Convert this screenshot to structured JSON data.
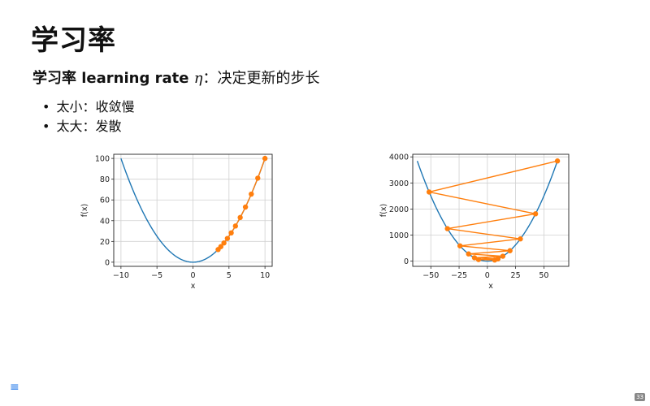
{
  "slide": {
    "title": "学习率",
    "subtitle_bold": "学习率 learning rate ",
    "subtitle_eta": "η",
    "subtitle_rest": "：决定更新的步长",
    "bullets": [
      "太小：收敛慢",
      "太大：发散"
    ],
    "page_number": "33"
  },
  "colors": {
    "curve": "#1f77b4",
    "steps": "#ff7f0e",
    "menu": "#1a73e8"
  },
  "icons": {
    "menu": "hamburger-menu-icon"
  },
  "chart_data": [
    {
      "type": "line",
      "xlabel": "x",
      "ylabel": "f(x)",
      "xlim": [
        -11,
        11
      ],
      "ylim": [
        -4,
        104
      ],
      "xticks": [
        -10,
        -5,
        0,
        5,
        10
      ],
      "yticks": [
        0,
        20,
        40,
        60,
        80,
        100
      ],
      "grid": true,
      "curve": {
        "function": "x^2",
        "x_range": [
          -10,
          10
        ]
      },
      "steps": {
        "x": [
          10,
          9.0,
          8.1,
          7.29,
          6.56,
          5.9,
          5.31,
          4.78,
          4.3,
          3.87,
          3.49
        ],
        "y": [
          100,
          81.0,
          65.61,
          53.14,
          43.05,
          34.87,
          28.24,
          22.88,
          18.53,
          15.01,
          12.16
        ]
      }
    },
    {
      "type": "line",
      "xlabel": "x",
      "ylabel": "f(x)",
      "xlim": [
        -66,
        72
      ],
      "ylim": [
        -200,
        4100
      ],
      "xticks": [
        -50,
        -25,
        0,
        25,
        50
      ],
      "yticks": [
        0,
        1000,
        2000,
        3000,
        4000
      ],
      "grid": true,
      "curve": {
        "function": "x^2",
        "x_range": [
          -62,
          62
        ]
      },
      "steps": {
        "x": [
          62,
          -51.5,
          42.6,
          -35.3,
          29.2,
          -24.2,
          20.0,
          -16.6,
          13.7,
          -11.4,
          9.4,
          -7.8,
          6.5
        ],
        "y": [
          3844,
          2652,
          1815,
          1246,
          853,
          586,
          400,
          276,
          188,
          130,
          88,
          61,
          42
        ]
      }
    }
  ]
}
